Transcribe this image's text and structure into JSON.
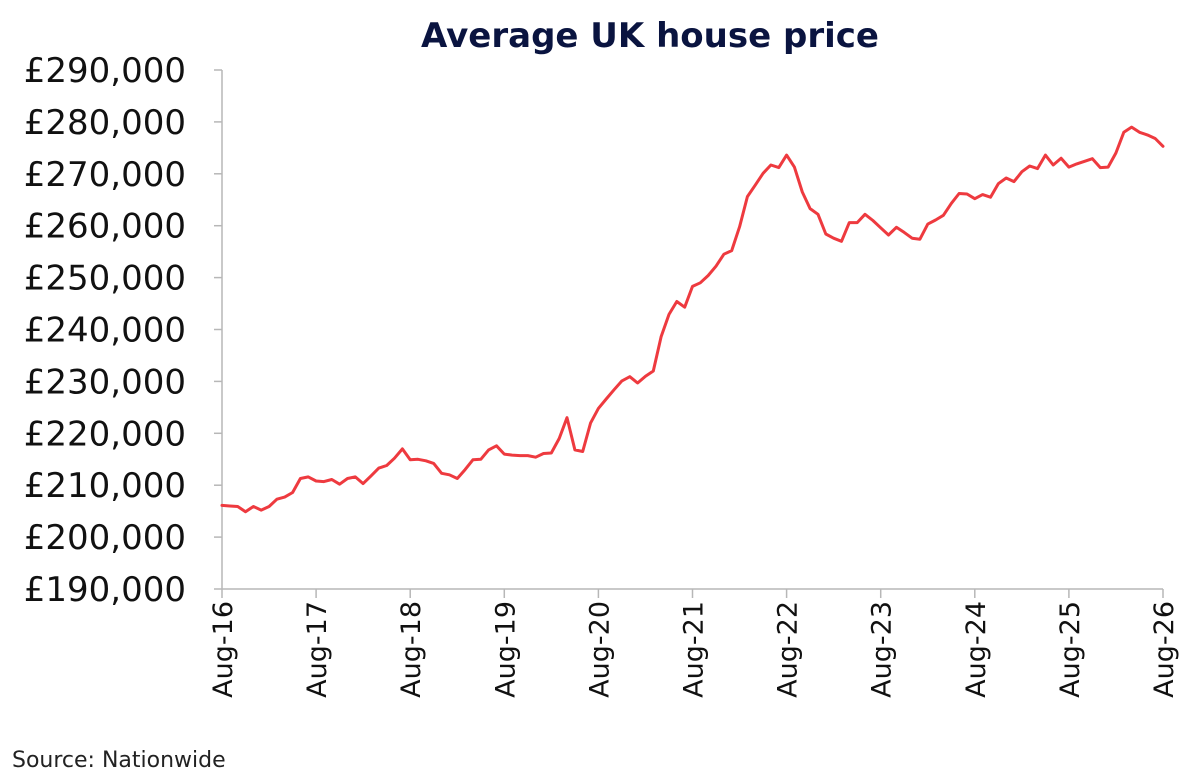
{
  "chart_data": {
    "type": "line",
    "title": "Average UK house price",
    "xlabel": "",
    "ylabel": "",
    "source": "Source: Nationwide",
    "ylim": [
      190000,
      290000
    ],
    "y_ticks": [
      190000,
      200000,
      210000,
      220000,
      230000,
      240000,
      250000,
      260000,
      270000,
      280000,
      290000
    ],
    "y_tick_labels": [
      "£190,000",
      "£200,000",
      "£210,000",
      "£220,000",
      "£230,000",
      "£240,000",
      "£250,000",
      "£260,000",
      "£270,000",
      "£280,000",
      "£290,000"
    ],
    "x_tick_labels": [
      "Aug-16",
      "Aug-17",
      "Aug-18",
      "Aug-19",
      "Aug-20",
      "Aug-21",
      "Aug-22",
      "Aug-23",
      "Aug-24",
      "Aug-25",
      "Aug-26"
    ],
    "grid": false,
    "line_color": "#ee3a3f",
    "series": [
      {
        "x": [
          "Aug-16",
          "Sep-16",
          "Oct-16",
          "Nov-16",
          "Dec-16",
          "Jan-17",
          "Feb-17",
          "Mar-17",
          "Apr-17",
          "May-17",
          "Jun-17",
          "Jul-17",
          "Aug-17",
          "Sep-17",
          "Oct-17",
          "Nov-17",
          "Dec-17",
          "Jan-18",
          "Feb-18",
          "Mar-18",
          "Apr-18",
          "May-18",
          "Jun-18",
          "Jul-18",
          "Aug-18",
          "Sep-18",
          "Oct-18",
          "Nov-18",
          "Dec-18",
          "Jan-19",
          "Feb-19",
          "Mar-19",
          "Apr-19",
          "May-19",
          "Jun-19",
          "Jul-19",
          "Aug-19",
          "Sep-19",
          "Oct-19",
          "Nov-19",
          "Dec-19",
          "Jan-20",
          "Feb-20",
          "Mar-20",
          "Apr-20",
          "May-20",
          "Jun-20",
          "Jul-20",
          "Aug-20",
          "Sep-20",
          "Oct-20",
          "Nov-20",
          "Dec-20",
          "Jan-21",
          "Feb-21",
          "Mar-21",
          "Apr-21",
          "May-21",
          "Jun-21",
          "Jul-21",
          "Aug-21",
          "Sep-21",
          "Oct-21",
          "Nov-21",
          "Dec-21",
          "Jan-22",
          "Feb-22",
          "Mar-22",
          "Apr-22",
          "May-22",
          "Jun-22",
          "Jul-22",
          "Aug-22",
          "Sep-22",
          "Oct-22",
          "Nov-22",
          "Dec-22",
          "Jan-23",
          "Feb-23",
          "Mar-23",
          "Apr-23",
          "May-23",
          "Jun-23",
          "Jul-23",
          "Aug-23",
          "Sep-23",
          "Oct-23",
          "Nov-23",
          "Dec-23",
          "Jan-24",
          "Feb-24",
          "Mar-24",
          "Apr-24",
          "May-24",
          "Jun-24",
          "Jul-24",
          "Aug-24",
          "Sep-24",
          "Oct-24",
          "Nov-24",
          "Dec-24",
          "Jan-25",
          "Feb-25",
          "Mar-25",
          "Apr-25",
          "May-25",
          "Jun-25",
          "Jul-25",
          "Aug-25",
          "Sep-25",
          "Oct-25",
          "Nov-25",
          "Dec-25",
          "Jan-26",
          "Feb-26",
          "Mar-26",
          "Apr-26",
          "May-26",
          "Jun-26",
          "Jul-26",
          "Aug-26"
        ],
        "values": [
          206100,
          206000,
          205900,
          204900,
          205900,
          205200,
          205900,
          207300,
          207700,
          208600,
          211300,
          211600,
          210800,
          210700,
          211100,
          210200,
          211300,
          211600,
          210300,
          211800,
          213300,
          213800,
          215200,
          217000,
          214900,
          215000,
          214700,
          214200,
          212300,
          212000,
          211300,
          213000,
          214900,
          215000,
          216800,
          217600,
          216000,
          215800,
          215700,
          215700,
          215400,
          216100,
          216200,
          219000,
          223000,
          216800,
          216500,
          222000,
          224800,
          226600,
          228400,
          230100,
          230900,
          229700,
          231000,
          232000,
          238600,
          242900,
          245400,
          244300,
          248300,
          249000,
          250400,
          252200,
          254500,
          255200,
          259800,
          265600,
          267800,
          270100,
          271700,
          271200,
          273600,
          271300,
          266500,
          263300,
          262200,
          258400,
          257600,
          257000,
          260600,
          260600,
          262200,
          261000,
          259600,
          258200,
          259700,
          258700,
          257600,
          257400,
          260300,
          261100,
          262000,
          264300,
          266200,
          266100,
          265200,
          266000,
          265500,
          268100,
          269200,
          268500,
          270400,
          271500,
          271000,
          273600,
          271700,
          273000,
          271300,
          271900,
          272400,
          272900,
          271200,
          271300,
          274000,
          278000,
          279000,
          278000,
          277500,
          276800,
          275300
        ]
      }
    ]
  }
}
